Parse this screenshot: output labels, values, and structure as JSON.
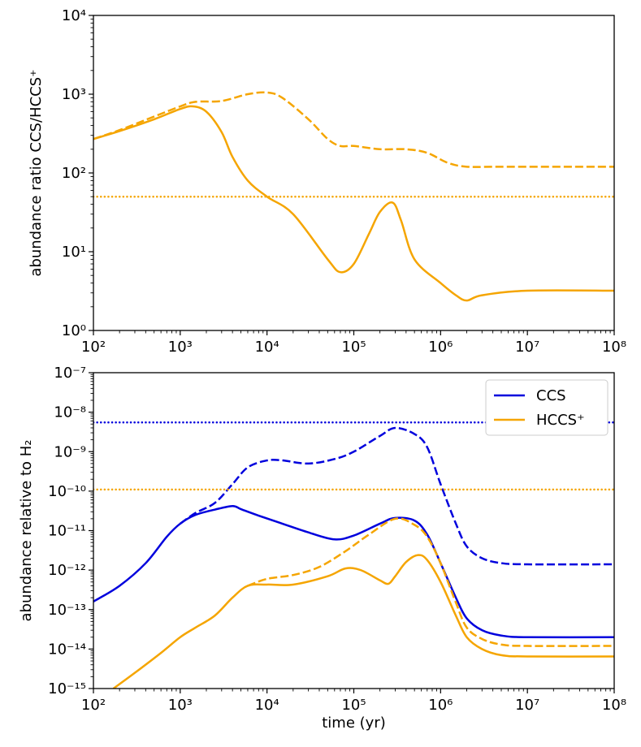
{
  "colors": {
    "ccs": "#0000dd",
    "hccs": "#f5a500",
    "axis": "#000000"
  },
  "chart_data": [
    {
      "type": "line",
      "id": "top",
      "xscale": "log",
      "yscale": "log",
      "xlim": [
        100,
        100000000
      ],
      "ylim": [
        1,
        10000
      ],
      "xlabel": "",
      "ylabel": "abundance ratio CCS/HCCS⁺",
      "xticks": [
        {
          "v": 100,
          "label": "10²"
        },
        {
          "v": 1000,
          "label": "10³"
        },
        {
          "v": 10000,
          "label": "10⁴"
        },
        {
          "v": 100000,
          "label": "10⁵"
        },
        {
          "v": 1000000,
          "label": "10⁶"
        },
        {
          "v": 10000000,
          "label": "10⁷"
        },
        {
          "v": 100000000,
          "label": "10⁸"
        }
      ],
      "yticks": [
        {
          "v": 1,
          "label": "10⁰"
        },
        {
          "v": 10,
          "label": "10¹"
        },
        {
          "v": 100,
          "label": "10²"
        },
        {
          "v": 1000,
          "label": "10³"
        },
        {
          "v": 10000,
          "label": "10⁴"
        }
      ],
      "series": [
        {
          "name": "ratio solid",
          "color": "hccs",
          "style": "solid",
          "x": [
            100,
            200,
            500,
            1000,
            1400,
            2000,
            3000,
            4000,
            6000,
            10000,
            20000,
            50000,
            70000,
            100000,
            150000,
            200000,
            280000,
            350000,
            500000,
            1000000,
            1500000,
            2000000,
            3000000,
            10000000,
            100000000
          ],
          "y": [
            270,
            340,
            480,
            650,
            700,
            600,
            330,
            160,
            80,
            50,
            30,
            8,
            5.5,
            7,
            17,
            32,
            42,
            25,
            8,
            4,
            2.8,
            2.4,
            2.8,
            3.2,
            3.2
          ]
        },
        {
          "name": "ratio dashed",
          "color": "hccs",
          "style": "dashed",
          "x": [
            100,
            200,
            500,
            1000,
            1500,
            3000,
            6000,
            10000,
            15000,
            30000,
            50000,
            70000,
            100000,
            200000,
            400000,
            700000,
            1200000,
            2000000,
            5000000,
            100000000
          ],
          "y": [
            270,
            350,
            520,
            700,
            800,
            820,
            1000,
            1050,
            900,
            480,
            270,
            220,
            220,
            200,
            200,
            180,
            135,
            120,
            120,
            120
          ]
        },
        {
          "name": "ratio reference",
          "color": "hccs",
          "style": "dotted",
          "x": [
            100,
            100000000
          ],
          "y": [
            50,
            50
          ]
        }
      ]
    },
    {
      "type": "line",
      "id": "bottom",
      "xscale": "log",
      "yscale": "log",
      "xlim": [
        100,
        100000000
      ],
      "ylim": [
        1e-15,
        1e-07
      ],
      "xlabel": "time (yr)",
      "ylabel": "abundance relative to H₂",
      "xticks": [
        {
          "v": 100,
          "label": "10²"
        },
        {
          "v": 1000,
          "label": "10³"
        },
        {
          "v": 10000,
          "label": "10⁴"
        },
        {
          "v": 100000,
          "label": "10⁵"
        },
        {
          "v": 1000000,
          "label": "10⁶"
        },
        {
          "v": 10000000,
          "label": "10⁷"
        },
        {
          "v": 100000000,
          "label": "10⁸"
        }
      ],
      "yticks": [
        {
          "v": 1e-15,
          "label": "10⁻¹⁵"
        },
        {
          "v": 1e-14,
          "label": "10⁻¹⁴"
        },
        {
          "v": 1e-13,
          "label": "10⁻¹³"
        },
        {
          "v": 1e-12,
          "label": "10⁻¹²"
        },
        {
          "v": 1e-11,
          "label": "10⁻¹¹"
        },
        {
          "v": 1e-10,
          "label": "10⁻¹⁰"
        },
        {
          "v": 1e-09,
          "label": "10⁻⁹"
        },
        {
          "v": 1e-08,
          "label": "10⁻⁸"
        },
        {
          "v": 1e-07,
          "label": "10⁻⁷"
        }
      ],
      "legend": {
        "position": "top-right",
        "entries": [
          {
            "label": "CCS",
            "color": "ccs"
          },
          {
            "label": "HCCS⁺",
            "color": "hccs"
          }
        ]
      },
      "series": [
        {
          "name": "CCS solid",
          "color": "ccs",
          "style": "solid",
          "x": [
            100,
            200,
            400,
            700,
            1000,
            1500,
            2500,
            4000,
            5000,
            8000,
            15000,
            30000,
            60000,
            100000,
            200000,
            300000,
            500000,
            700000,
            1000000,
            1500000,
            2000000,
            3000000,
            5000000,
            10000000,
            100000000
          ],
          "y": [
            1.6e-13,
            4e-13,
            1.5e-12,
            7e-12,
            1.5e-11,
            2.5e-11,
            3.4e-11,
            4.2e-11,
            3.5e-11,
            2.4e-11,
            1.5e-11,
            9e-12,
            6e-12,
            7.5e-12,
            1.5e-11,
            2.1e-11,
            1.8e-11,
            8e-12,
            1.5e-12,
            2e-13,
            6e-14,
            3e-14,
            2.2e-14,
            2e-14,
            2e-14
          ]
        },
        {
          "name": "CCS dashed",
          "color": "ccs",
          "style": "dashed",
          "x": [
            1000,
            1500,
            2500,
            4000,
            6000,
            10000,
            15000,
            30000,
            60000,
            100000,
            200000,
            300000,
            500000,
            700000,
            1000000,
            1500000,
            2000000,
            3000000,
            5000000,
            10000000,
            100000000
          ],
          "y": [
            1.5e-11,
            2.8e-11,
            5e-11,
            1.5e-10,
            4e-10,
            6e-10,
            6e-10,
            5e-10,
            6.5e-10,
            1e-09,
            2.5e-09,
            4e-09,
            2.8e-09,
            1.3e-09,
            1.5e-10,
            1.5e-11,
            4e-12,
            2e-12,
            1.5e-12,
            1.4e-12,
            1.4e-12
          ]
        },
        {
          "name": "CCS reference",
          "color": "ccs",
          "style": "dotted",
          "x": [
            100,
            100000000
          ],
          "y": [
            5.5e-09,
            5.5e-09
          ]
        },
        {
          "name": "HCCS+ solid",
          "color": "hccs",
          "style": "solid",
          "x": [
            170,
            300,
            600,
            1000,
            1500,
            2500,
            4000,
            6000,
            10000,
            20000,
            50000,
            80000,
            120000,
            200000,
            250000,
            300000,
            400000,
            550000,
            700000,
            1000000,
            1500000,
            2000000,
            3000000,
            5000000,
            10000000,
            100000000
          ],
          "y": [
            1e-15,
            2.5e-15,
            8e-15,
            2e-14,
            3.5e-14,
            7e-14,
            2e-13,
            4e-13,
            4.3e-13,
            4.3e-13,
            7e-13,
            1.1e-12,
            1e-12,
            5.5e-13,
            4.5e-13,
            7e-13,
            1.6e-12,
            2.4e-12,
            1.8e-12,
            5e-13,
            7e-14,
            2e-14,
            1e-14,
            7e-15,
            6.5e-15,
            6.5e-15
          ]
        },
        {
          "name": "HCCS+ dashed",
          "color": "hccs",
          "style": "dashed",
          "x": [
            6000,
            10000,
            20000,
            40000,
            80000,
            150000,
            300000,
            500000,
            700000,
            1000000,
            1500000,
            2000000,
            3000000,
            5000000,
            10000000,
            100000000
          ],
          "y": [
            4e-13,
            6e-13,
            7.5e-13,
            1.2e-12,
            3e-12,
            8e-12,
            2e-11,
            1.4e-11,
            7e-12,
            1.5e-12,
            1.5e-13,
            3.5e-14,
            1.8e-14,
            1.3e-14,
            1.2e-14,
            1.2e-14
          ]
        },
        {
          "name": "HCCS+ reference",
          "color": "hccs",
          "style": "dotted",
          "x": [
            100,
            100000000
          ],
          "y": [
            1.1e-10,
            1.1e-10
          ]
        }
      ]
    }
  ]
}
